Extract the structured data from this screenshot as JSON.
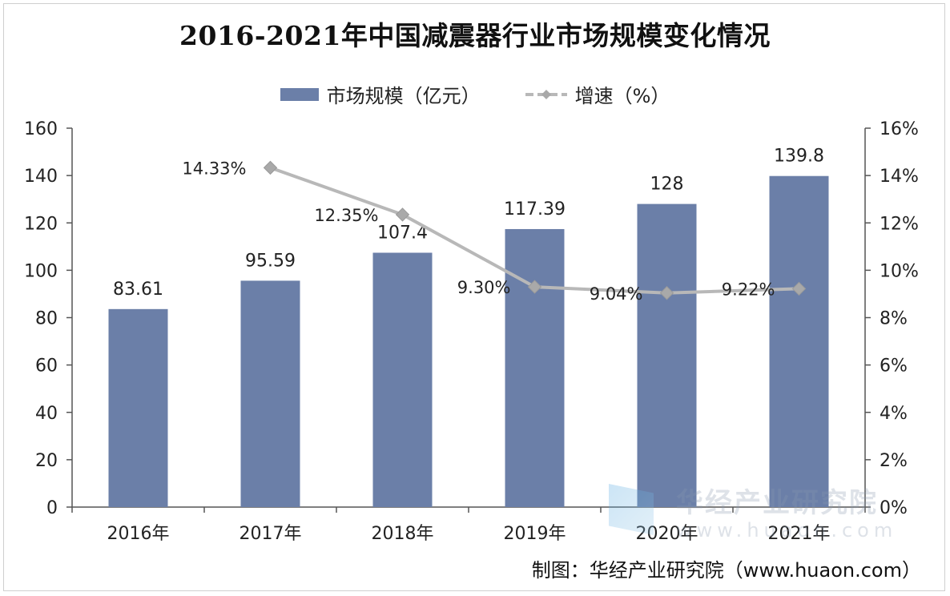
{
  "chart_data": {
    "type": "bar",
    "title": "2016-2021年中国减震器行业市场规模变化情况",
    "categories": [
      "2016年",
      "2017年",
      "2018年",
      "2019年",
      "2020年",
      "2021年"
    ],
    "series": [
      {
        "name": "市场规模（亿元）",
        "type": "bar",
        "axis": "left",
        "values": [
          83.61,
          95.59,
          107.4,
          117.39,
          128,
          139.8
        ],
        "labels": [
          "83.61",
          "95.59",
          "107.4",
          "117.39",
          "128",
          "139.8"
        ]
      },
      {
        "name": "增速（%）",
        "type": "line",
        "axis": "right",
        "values": [
          null,
          14.33,
          12.35,
          9.3,
          9.04,
          9.22
        ],
        "labels": [
          null,
          "14.33%",
          "12.35%",
          "9.30%",
          "9.04%",
          "9.22%"
        ]
      }
    ],
    "ylim_left": [
      0,
      160
    ],
    "yticks_left": [
      "0",
      "20",
      "40",
      "60",
      "80",
      "100",
      "120",
      "140",
      "160"
    ],
    "ylim_right": [
      0,
      16
    ],
    "yticks_right": [
      "0%",
      "2%",
      "4%",
      "6%",
      "8%",
      "10%",
      "12%",
      "14%",
      "16%"
    ],
    "grid": false,
    "legend_position": "top",
    "colors": {
      "bar": "#6b7fa8",
      "line": "#b8b8b8",
      "marker": "#a9a9a9"
    }
  },
  "watermark": {
    "text": "华经产业研究院",
    "url": "www.huaon.com"
  },
  "credit": "制图：华经产业研究院（www.huaon.com）"
}
